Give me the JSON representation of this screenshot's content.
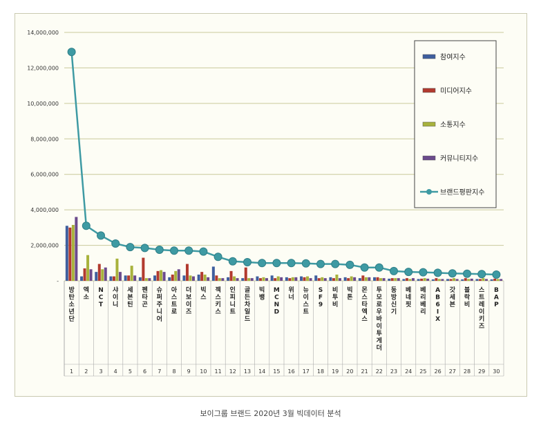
{
  "caption": "보이그룹 브랜드 2020년 3월 빅데이터 분석",
  "chart_data": {
    "type": "bar",
    "title": "",
    "xlabel": "",
    "ylabel": "",
    "ylim": [
      0,
      14000000
    ],
    "yticks": [
      "-",
      "2,000,000",
      "4,000,000",
      "6,000,000",
      "8,000,000",
      "10,000,000",
      "12,000,000",
      "14,000,000"
    ],
    "grid": true,
    "legend_position": "top-right",
    "categories": [
      "방탄소년단",
      "엑소",
      "NCT",
      "샤이니",
      "세븐틴",
      "펜타곤",
      "슈퍼주니어",
      "아스트로",
      "더보이즈",
      "빅스",
      "젝스키스",
      "인피니트",
      "골든차일드",
      "빅뱅",
      "MCND",
      "위너",
      "뉴이스트",
      "SF9",
      "비투비",
      "빅톤",
      "몬스타엑스",
      "투모로우바이투게더",
      "동방신기",
      "베네핏",
      "베리베리",
      "AB6IX",
      "갓세븐",
      "블락비",
      "스트레이키즈",
      "BAP"
    ],
    "ranks": [
      "1",
      "2",
      "3",
      "4",
      "5",
      "6",
      "7",
      "8",
      "9",
      "10",
      "11",
      "12",
      "13",
      "14",
      "15",
      "16",
      "17",
      "18",
      "19",
      "20",
      "21",
      "22",
      "23",
      "24",
      "25",
      "26",
      "27",
      "28",
      "29",
      "30"
    ],
    "series": [
      {
        "name": "참여지수",
        "type": "bar",
        "color": "#3f5f9e",
        "values": [
          3100000,
          250000,
          500000,
          250000,
          300000,
          200000,
          300000,
          200000,
          300000,
          350000,
          800000,
          200000,
          150000,
          250000,
          300000,
          200000,
          250000,
          300000,
          200000,
          200000,
          150000,
          200000,
          120000,
          100000,
          100000,
          80000,
          100000,
          80000,
          100000,
          80000
        ]
      },
      {
        "name": "미디어지수",
        "type": "bar",
        "color": "#b23a2e",
        "values": [
          3000000,
          700000,
          950000,
          250000,
          300000,
          1300000,
          550000,
          350000,
          950000,
          500000,
          300000,
          550000,
          750000,
          150000,
          150000,
          150000,
          200000,
          150000,
          150000,
          150000,
          300000,
          200000,
          150000,
          150000,
          120000,
          150000,
          100000,
          150000,
          100000,
          120000
        ]
      },
      {
        "name": "소통지수",
        "type": "bar",
        "color": "#a8b23c",
        "values": [
          3150000,
          1450000,
          650000,
          1250000,
          850000,
          150000,
          600000,
          550000,
          300000,
          350000,
          150000,
          250000,
          150000,
          200000,
          250000,
          200000,
          250000,
          200000,
          350000,
          250000,
          200000,
          150000,
          150000,
          100000,
          150000,
          100000,
          150000,
          100000,
          150000,
          100000
        ]
      },
      {
        "name": "커뮤니티지수",
        "type": "bar",
        "color": "#6b4a8c",
        "values": [
          3600000,
          650000,
          750000,
          500000,
          300000,
          150000,
          500000,
          650000,
          250000,
          200000,
          150000,
          150000,
          150000,
          150000,
          200000,
          200000,
          150000,
          150000,
          150000,
          200000,
          200000,
          150000,
          150000,
          150000,
          120000,
          100000,
          100000,
          120000,
          100000,
          100000
        ]
      },
      {
        "name": "브랜드평판지수",
        "type": "line",
        "color": "#3e9aa3",
        "values": [
          12900000,
          3100000,
          2550000,
          2100000,
          1900000,
          1850000,
          1750000,
          1700000,
          1700000,
          1650000,
          1350000,
          1100000,
          1050000,
          1000000,
          1000000,
          1000000,
          980000,
          950000,
          950000,
          900000,
          750000,
          750000,
          550000,
          500000,
          480000,
          450000,
          420000,
          400000,
          380000,
          350000
        ]
      }
    ]
  }
}
